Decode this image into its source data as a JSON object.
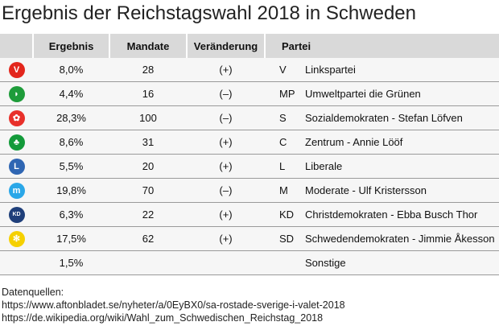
{
  "title": "Ergebnis der Reichstagswahl 2018 in Schweden",
  "headers": [
    "",
    "Ergebnis",
    "Mandate",
    "Veränderung",
    "Partei"
  ],
  "rows": [
    {
      "logo": "V",
      "color": "#e3261c",
      "result": "8,0%",
      "seats": "28",
      "change": "(+)",
      "abbr": "V",
      "name": "Linkspartei"
    },
    {
      "logo": "◗",
      "color": "#1e9c3a",
      "result": "4,4%",
      "seats": "16",
      "change": "(–)",
      "abbr": "MP",
      "name": "Umweltpartei die Grünen"
    },
    {
      "logo": "✿",
      "color": "#e8302a",
      "result": "28,3%",
      "seats": "100",
      "change": "(–)",
      "abbr": "S",
      "name": "Sozialdemokraten - Stefan Löfven"
    },
    {
      "logo": "♣",
      "color": "#139a3a",
      "result": "8,6%",
      "seats": "31",
      "change": "(+)",
      "abbr": "C",
      "name": "Zentrum - Annie Lööf"
    },
    {
      "logo": "L",
      "color": "#2f66b3",
      "result": "5,5%",
      "seats": "20",
      "change": "(+)",
      "abbr": "L",
      "name": "Liberale"
    },
    {
      "logo": "m",
      "color": "#2aa7e8",
      "result": "19,8%",
      "seats": "70",
      "change": "(–)",
      "abbr": "M",
      "name": "Moderate - Ulf Kristersson"
    },
    {
      "logo": "KD",
      "color": "#1f3f7a",
      "result": "6,3%",
      "seats": "22",
      "change": "(+)",
      "abbr": "KD",
      "name": "Christdemokraten - Ebba Busch Thor"
    },
    {
      "logo": "✻",
      "color": "#f5d000",
      "result": "17,5%",
      "seats": "62",
      "change": "(+)",
      "abbr": "SD",
      "name": "Schwedendemokraten - Jimmie Åkesson"
    },
    {
      "logo": "",
      "color": "",
      "result": "1,5%",
      "seats": "",
      "change": "",
      "abbr": "",
      "name": "Sonstige"
    }
  ],
  "sources": {
    "label": "Datenquellen:",
    "links": [
      "https://www.aftonbladet.se/nyheter/a/0EyBX0/sa-rostade-sverige-i-valet-2018",
      "https://de.wikipedia.org/wiki/Wahl_zum_Schwedischen_Reichstag_2018"
    ]
  }
}
